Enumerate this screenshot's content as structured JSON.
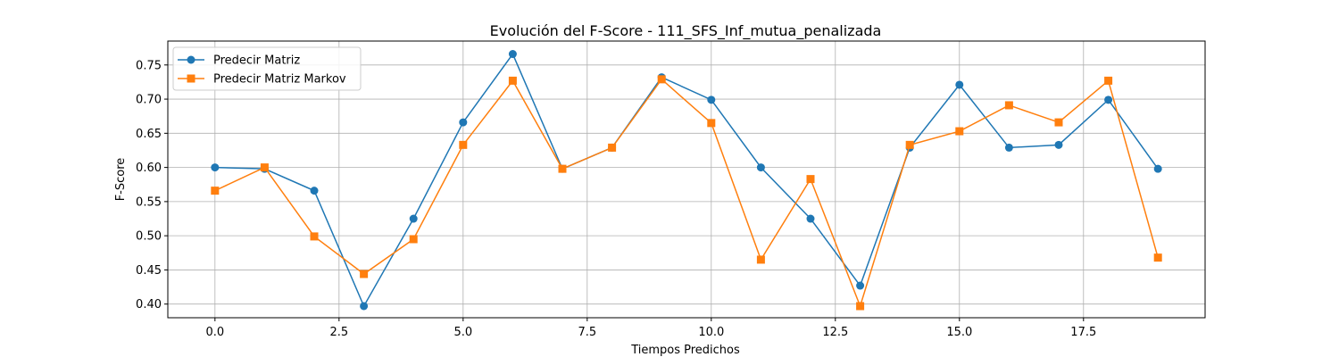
{
  "chart_data": {
    "type": "line",
    "title": "Evolución del F-Score - 111_SFS_Inf_mutua_penalizada",
    "xlabel": "Tiempos Predichos",
    "ylabel": "F-Score",
    "xlim": [
      -0.95,
      19.95
    ],
    "ylim": [
      0.38,
      0.785
    ],
    "xticks": [
      0.0,
      2.5,
      5.0,
      7.5,
      10.0,
      12.5,
      15.0,
      17.5
    ],
    "xtick_labels": [
      "0.0",
      "2.5",
      "5.0",
      "7.5",
      "10.0",
      "12.5",
      "15.0",
      "17.5"
    ],
    "yticks": [
      0.4,
      0.45,
      0.5,
      0.55,
      0.6,
      0.65,
      0.7,
      0.75
    ],
    "ytick_labels": [
      "0.40",
      "0.45",
      "0.50",
      "0.55",
      "0.60",
      "0.65",
      "0.70",
      "0.75"
    ],
    "grid": true,
    "legend_position": "upper-left",
    "x": [
      0,
      1,
      2,
      3,
      4,
      5,
      6,
      7,
      8,
      9,
      10,
      11,
      12,
      13,
      14,
      15,
      16,
      17,
      18,
      19
    ],
    "series": [
      {
        "name": "Predecir Matriz",
        "color": "#1f77b4",
        "marker": "circle",
        "values": [
          0.6,
          0.598,
          0.566,
          0.397,
          0.525,
          0.666,
          0.766,
          0.598,
          0.629,
          0.732,
          0.699,
          0.6,
          0.525,
          0.427,
          0.629,
          0.721,
          0.629,
          0.633,
          0.699,
          0.598
        ]
      },
      {
        "name": "Predecir Matriz Markov",
        "color": "#ff7f0e",
        "marker": "square",
        "values": [
          0.566,
          0.6,
          0.499,
          0.444,
          0.495,
          0.633,
          0.727,
          0.598,
          0.629,
          0.729,
          0.665,
          0.465,
          0.583,
          0.397,
          0.633,
          0.653,
          0.691,
          0.666,
          0.727,
          0.468
        ]
      }
    ]
  }
}
